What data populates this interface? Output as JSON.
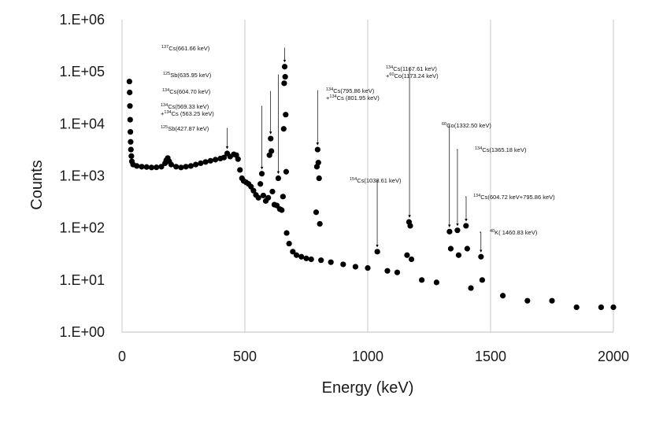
{
  "chart_data": {
    "type": "scatter",
    "title": "",
    "xlabel": "Energy (keV)",
    "ylabel": "Counts",
    "xlim": [
      0,
      2000
    ],
    "ylim": [
      1,
      1000000
    ],
    "yscale": "log",
    "grid": "vertical",
    "legend": "none",
    "marker_color": "#000000",
    "x_ticks": [
      {
        "value": 0,
        "label": "0"
      },
      {
        "value": 500,
        "label": "500"
      },
      {
        "value": 1000,
        "label": "1000"
      },
      {
        "value": 1500,
        "label": "1500"
      },
      {
        "value": 2000,
        "label": "2000"
      }
    ],
    "y_ticks": [
      {
        "value": 1,
        "label": "1.E+00"
      },
      {
        "value": 10,
        "label": "1.E+01"
      },
      {
        "value": 100,
        "label": "1.E+02"
      },
      {
        "value": 1000,
        "label": "1.E+03"
      },
      {
        "value": 10000,
        "label": "1.E+04"
      },
      {
        "value": 100000,
        "label": "1.E+05"
      },
      {
        "value": 1000000,
        "label": "1.E+06"
      }
    ],
    "spectrum": [
      {
        "e": 30,
        "c": 65000
      },
      {
        "e": 31,
        "c": 40000
      },
      {
        "e": 32,
        "c": 22000
      },
      {
        "e": 33,
        "c": 12000
      },
      {
        "e": 34,
        "c": 7000
      },
      {
        "e": 35,
        "c": 4500
      },
      {
        "e": 36,
        "c": 3200
      },
      {
        "e": 38,
        "c": 2400
      },
      {
        "e": 40,
        "c": 1900
      },
      {
        "e": 45,
        "c": 1650
      },
      {
        "e": 60,
        "c": 1550
      },
      {
        "e": 80,
        "c": 1500
      },
      {
        "e": 100,
        "c": 1480
      },
      {
        "e": 120,
        "c": 1450
      },
      {
        "e": 140,
        "c": 1460
      },
      {
        "e": 160,
        "c": 1500
      },
      {
        "e": 175,
        "c": 1750
      },
      {
        "e": 180,
        "c": 2000
      },
      {
        "e": 186,
        "c": 2200
      },
      {
        "e": 192,
        "c": 1900
      },
      {
        "e": 200,
        "c": 1650
      },
      {
        "e": 220,
        "c": 1500
      },
      {
        "e": 240,
        "c": 1450
      },
      {
        "e": 260,
        "c": 1500
      },
      {
        "e": 280,
        "c": 1550
      },
      {
        "e": 300,
        "c": 1650
      },
      {
        "e": 320,
        "c": 1750
      },
      {
        "e": 340,
        "c": 1850
      },
      {
        "e": 360,
        "c": 1950
      },
      {
        "e": 380,
        "c": 2050
      },
      {
        "e": 400,
        "c": 2150
      },
      {
        "e": 415,
        "c": 2250
      },
      {
        "e": 428,
        "c": 2700
      },
      {
        "e": 440,
        "c": 2350
      },
      {
        "e": 455,
        "c": 2600
      },
      {
        "e": 465,
        "c": 2500
      },
      {
        "e": 472,
        "c": 2100
      },
      {
        "e": 480,
        "c": 1300
      },
      {
        "e": 488,
        "c": 900
      },
      {
        "e": 495,
        "c": 800
      },
      {
        "e": 505,
        "c": 750
      },
      {
        "e": 515,
        "c": 700
      },
      {
        "e": 525,
        "c": 620
      },
      {
        "e": 535,
        "c": 520
      },
      {
        "e": 545,
        "c": 430
      },
      {
        "e": 555,
        "c": 380
      },
      {
        "e": 563,
        "c": 700
      },
      {
        "e": 569,
        "c": 1100
      },
      {
        "e": 575,
        "c": 420
      },
      {
        "e": 585,
        "c": 330
      },
      {
        "e": 595,
        "c": 380
      },
      {
        "e": 600,
        "c": 2500
      },
      {
        "e": 605,
        "c": 5200
      },
      {
        "e": 608,
        "c": 3000
      },
      {
        "e": 612,
        "c": 500
      },
      {
        "e": 620,
        "c": 280
      },
      {
        "e": 630,
        "c": 270
      },
      {
        "e": 636,
        "c": 900
      },
      {
        "e": 642,
        "c": 230
      },
      {
        "e": 650,
        "c": 220
      },
      {
        "e": 655,
        "c": 400
      },
      {
        "e": 658,
        "c": 8000
      },
      {
        "e": 660,
        "c": 60000
      },
      {
        "e": 662,
        "c": 125000
      },
      {
        "e": 664,
        "c": 80000
      },
      {
        "e": 666,
        "c": 15000
      },
      {
        "e": 668,
        "c": 1200
      },
      {
        "e": 670,
        "c": 80
      },
      {
        "e": 680,
        "c": 50
      },
      {
        "e": 695,
        "c": 35
      },
      {
        "e": 710,
        "c": 30
      },
      {
        "e": 730,
        "c": 28
      },
      {
        "e": 750,
        "c": 26
      },
      {
        "e": 770,
        "c": 25
      },
      {
        "e": 790,
        "c": 200
      },
      {
        "e": 793,
        "c": 1500
      },
      {
        "e": 796,
        "c": 3200
      },
      {
        "e": 799,
        "c": 1800
      },
      {
        "e": 802,
        "c": 900
      },
      {
        "e": 805,
        "c": 120
      },
      {
        "e": 810,
        "c": 24
      },
      {
        "e": 850,
        "c": 22
      },
      {
        "e": 900,
        "c": 20
      },
      {
        "e": 950,
        "c": 18
      },
      {
        "e": 1000,
        "c": 17
      },
      {
        "e": 1039,
        "c": 35
      },
      {
        "e": 1080,
        "c": 15
      },
      {
        "e": 1120,
        "c": 14
      },
      {
        "e": 1160,
        "c": 30
      },
      {
        "e": 1168,
        "c": 130
      },
      {
        "e": 1173,
        "c": 110
      },
      {
        "e": 1178,
        "c": 25
      },
      {
        "e": 1220,
        "c": 10
      },
      {
        "e": 1280,
        "c": 9
      },
      {
        "e": 1333,
        "c": 85
      },
      {
        "e": 1338,
        "c": 40
      },
      {
        "e": 1365,
        "c": 90
      },
      {
        "e": 1370,
        "c": 30
      },
      {
        "e": 1400,
        "c": 110
      },
      {
        "e": 1405,
        "c": 40
      },
      {
        "e": 1420,
        "c": 7
      },
      {
        "e": 1461,
        "c": 28
      },
      {
        "e": 1466,
        "c": 10
      },
      {
        "e": 1550,
        "c": 5
      },
      {
        "e": 1650,
        "c": 4
      },
      {
        "e": 1750,
        "c": 4
      },
      {
        "e": 1850,
        "c": 3
      },
      {
        "e": 1950,
        "c": 3
      },
      {
        "e": 2000,
        "c": 3
      }
    ],
    "annotations": [
      {
        "sup": "137",
        "text": "Cs(661.66 keV)",
        "energy": 661.66,
        "counts": 125000
      },
      {
        "sup": "125",
        "text": "Sb(635.95 keV)",
        "energy": 635.95,
        "counts": 900
      },
      {
        "sup": "134",
        "text": "Cs(604.70 keV)",
        "energy": 604.7,
        "counts": 5200
      },
      {
        "sup": "134",
        "text": "Cs(569.33 keV)",
        "sup2": "134",
        "text2": "Cs (563.25 keV)",
        "prefix2": "+",
        "energy": 569.33,
        "counts": 1100
      },
      {
        "sup": "125",
        "text": "Sb(427.87 keV)",
        "energy": 427.87,
        "counts": 2700
      },
      {
        "sup": "134",
        "text": "Cs(795.86 keV)",
        "sup2": "134",
        "text2": "Cs (801.95 keV)",
        "prefix2": "+",
        "energy": 795.86,
        "counts": 3200
      },
      {
        "sup": "134",
        "text": "Cs(1167.61 keV)",
        "sup2": "60",
        "text2": "Co(1173.24 keV)",
        "prefix2": "+",
        "energy": 1170,
        "counts": 130
      },
      {
        "sup": "154",
        "text": "Cs(1038.61 keV)",
        "energy": 1038.61,
        "counts": 35
      },
      {
        "sup": "60",
        "text": "Co(1332.50 keV)",
        "energy": 1332.5,
        "counts": 85
      },
      {
        "sup": "134",
        "text": "Cs(1365.18 keV)",
        "energy": 1365.18,
        "counts": 90
      },
      {
        "sup": "134",
        "text": "Cs(604.72 keV+795.86 keV)",
        "energy": 1400.58,
        "counts": 110
      },
      {
        "sup": "40",
        "text": "K( 1460.83 keV)",
        "energy": 1460.83,
        "counts": 28
      }
    ]
  }
}
